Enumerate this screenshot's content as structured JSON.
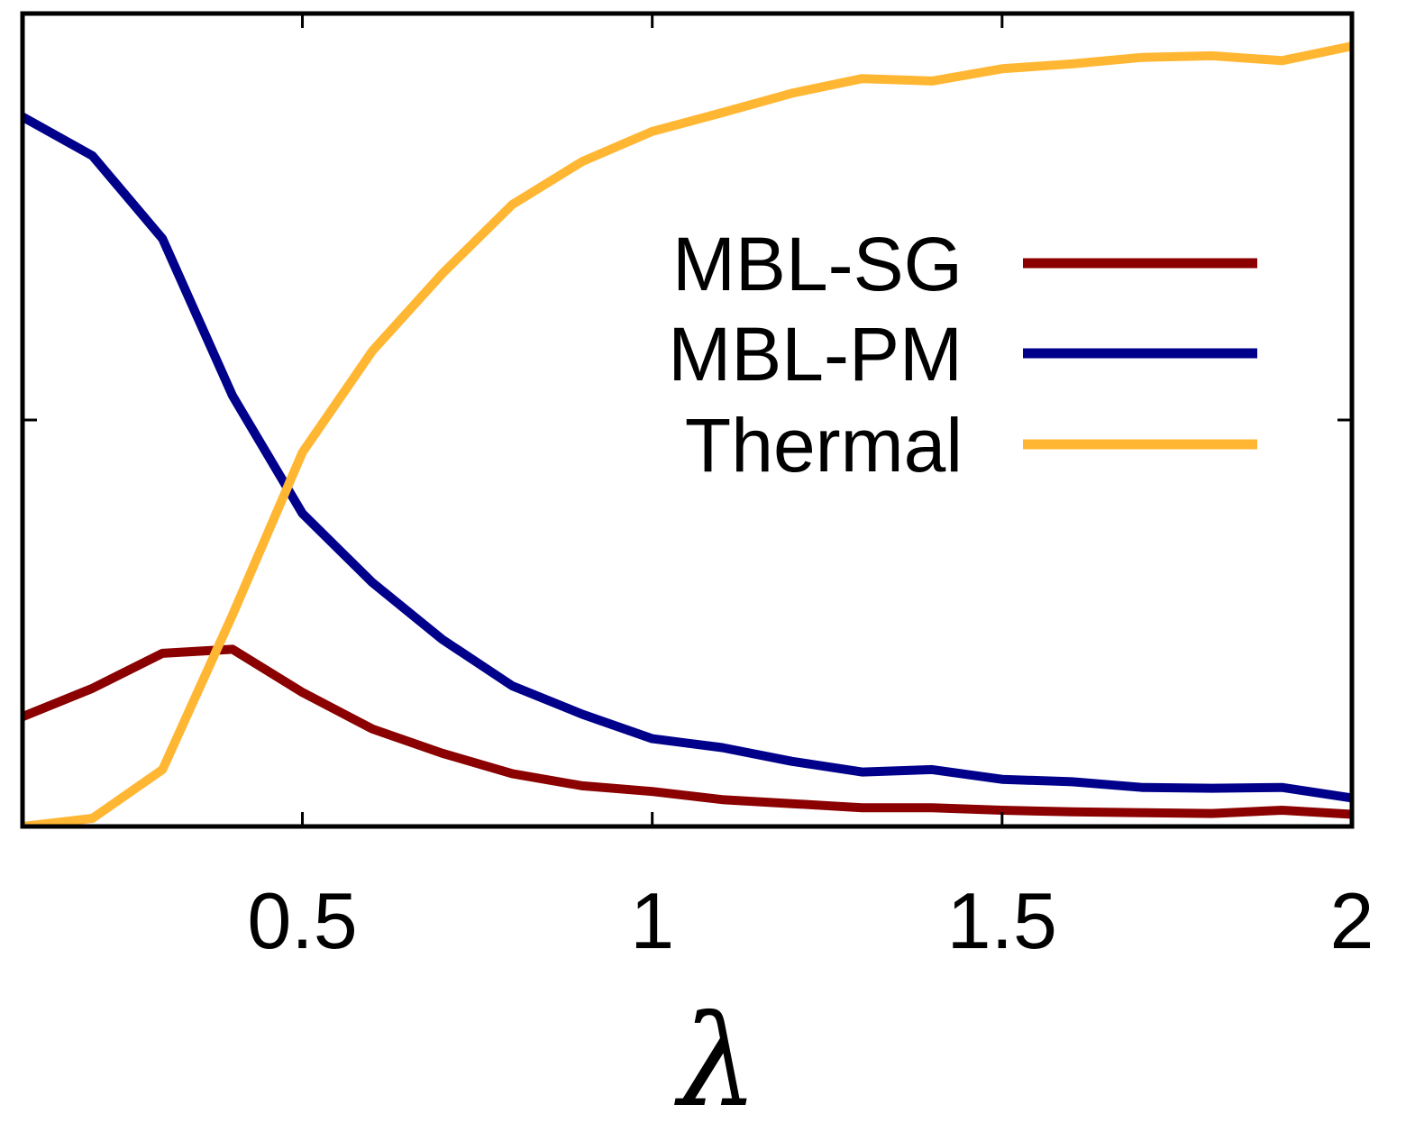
{
  "chart_data": {
    "type": "line",
    "title": "",
    "xlabel": "λ",
    "ylabel": "",
    "xlim": [
      0.1,
      2.0
    ],
    "ylim": [
      0,
      1
    ],
    "x_ticks": [
      0.5,
      1,
      1.5,
      2
    ],
    "x_tick_labels": [
      "0.5",
      "1",
      "1.5",
      "2"
    ],
    "y_ticks": [
      0.5
    ],
    "legend_position": "top-right",
    "x": [
      0.1,
      0.2,
      0.3,
      0.4,
      0.5,
      0.6,
      0.7,
      0.8,
      0.9,
      1.0,
      1.1,
      1.2,
      1.3,
      1.4,
      1.5,
      1.6,
      1.7,
      1.8,
      1.9,
      2.0
    ],
    "series": [
      {
        "name": "MBL-SG",
        "color": "#8b0000",
        "values": [
          0.135,
          0.17,
          0.213,
          0.218,
          0.165,
          0.12,
          0.09,
          0.065,
          0.05,
          0.043,
          0.033,
          0.028,
          0.023,
          0.023,
          0.02,
          0.018,
          0.017,
          0.016,
          0.02,
          0.015
        ]
      },
      {
        "name": "MBL-PM",
        "color": "#00008b",
        "values": [
          0.873,
          0.825,
          0.723,
          0.53,
          0.385,
          0.3,
          0.23,
          0.173,
          0.138,
          0.108,
          0.097,
          0.08,
          0.067,
          0.07,
          0.058,
          0.055,
          0.048,
          0.047,
          0.048,
          0.035
        ]
      },
      {
        "name": "Thermal",
        "color": "#ffb733",
        "values": [
          0.0,
          0.01,
          0.07,
          0.26,
          0.46,
          0.585,
          0.68,
          0.765,
          0.818,
          0.855,
          0.878,
          0.902,
          0.92,
          0.917,
          0.932,
          0.938,
          0.946,
          0.948,
          0.942,
          0.96
        ]
      }
    ]
  }
}
